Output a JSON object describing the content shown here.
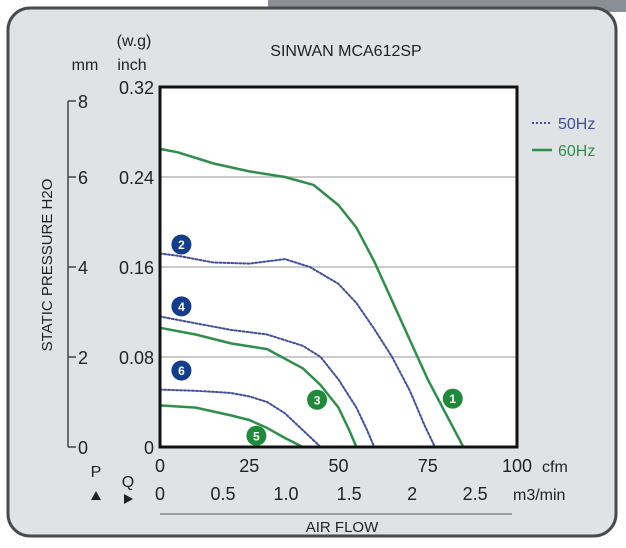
{
  "colors": {
    "frame_fill": "#dfe3e6",
    "header_tab": "#8a9096",
    "plot_bg": "#ffffff",
    "grid": "#b8b8b8",
    "series_50hz": "#3f4f9a",
    "series_60hz": "#2f8f4a",
    "badge_blue": "#123c8c",
    "badge_green": "#1f8a3a"
  },
  "chart_data": {
    "type": "line",
    "title": "SINWAN MCA612SP",
    "ylabel": "STATIC PRESSURE H2O",
    "xlabel": "AIR FLOW",
    "y_unit_top": "(w.g)",
    "y_units": [
      "mm",
      "inch"
    ],
    "x_units": {
      "p_marker": "P",
      "q_marker": "Q",
      "cfm": "cfm",
      "m3": "m3/min"
    },
    "xlim_cfm": [
      0,
      100
    ],
    "ylim_inch": [
      0,
      0.32
    ],
    "ylim_mm": [
      0,
      8
    ],
    "x_ticks_cfm": [
      "0",
      "25",
      "50",
      "75",
      "100"
    ],
    "x_ticks_m3": [
      "0",
      "0.5",
      "1.0",
      "1.5",
      "2",
      "2.5"
    ],
    "y_ticks_inch": [
      "0",
      "0.08",
      "0.16",
      "0.24",
      "0.32"
    ],
    "y_ticks_mm": [
      "0",
      "2",
      "4",
      "6",
      "8"
    ],
    "grid": true,
    "legend_position": "right",
    "legend": [
      {
        "label": "50Hz",
        "style": "dotted"
      },
      {
        "label": "60Hz",
        "style": "solid"
      }
    ],
    "series": [
      {
        "id": "1",
        "freq": "60Hz",
        "x": [
          0,
          5,
          15,
          25,
          35,
          43,
          50,
          55,
          60,
          65,
          70,
          75,
          80,
          85
        ],
        "y": [
          0.265,
          0.262,
          0.252,
          0.245,
          0.24,
          0.233,
          0.215,
          0.195,
          0.165,
          0.13,
          0.095,
          0.06,
          0.03,
          0
        ]
      },
      {
        "id": "2",
        "freq": "50Hz",
        "x": [
          0,
          5,
          15,
          25,
          35,
          42,
          50,
          55,
          60,
          65,
          70,
          74,
          77
        ],
        "y": [
          0.172,
          0.17,
          0.164,
          0.163,
          0.167,
          0.16,
          0.145,
          0.128,
          0.105,
          0.08,
          0.05,
          0.02,
          0
        ]
      },
      {
        "id": "3",
        "freq": "60Hz",
        "x": [
          0,
          10,
          20,
          30,
          40,
          45,
          50,
          53,
          55
        ],
        "y": [
          0.106,
          0.1,
          0.092,
          0.087,
          0.07,
          0.055,
          0.035,
          0.015,
          0
        ]
      },
      {
        "id": "4",
        "freq": "50Hz",
        "x": [
          0,
          10,
          20,
          30,
          40,
          45,
          50,
          55,
          58,
          60
        ],
        "y": [
          0.116,
          0.11,
          0.104,
          0.1,
          0.09,
          0.08,
          0.06,
          0.035,
          0.015,
          0
        ]
      },
      {
        "id": "5",
        "freq": "60Hz",
        "x": [
          0,
          10,
          20,
          25,
          30,
          35,
          40
        ],
        "y": [
          0.037,
          0.035,
          0.028,
          0.024,
          0.017,
          0.008,
          0
        ]
      },
      {
        "id": "6",
        "freq": "50Hz",
        "x": [
          0,
          10,
          20,
          25,
          30,
          35,
          40,
          45
        ],
        "y": [
          0.051,
          0.05,
          0.048,
          0.045,
          0.04,
          0.03,
          0.015,
          0
        ]
      }
    ],
    "curve_badges": [
      {
        "id": "1",
        "color": "green",
        "x": 82,
        "y": 0.043
      },
      {
        "id": "2",
        "color": "blue",
        "x": 6,
        "y": 0.18
      },
      {
        "id": "3",
        "color": "green",
        "x": 44,
        "y": 0.042
      },
      {
        "id": "4",
        "color": "blue",
        "x": 6,
        "y": 0.125
      },
      {
        "id": "5",
        "color": "green",
        "x": 27,
        "y": 0.01
      },
      {
        "id": "6",
        "color": "blue",
        "x": 6,
        "y": 0.068
      }
    ]
  }
}
